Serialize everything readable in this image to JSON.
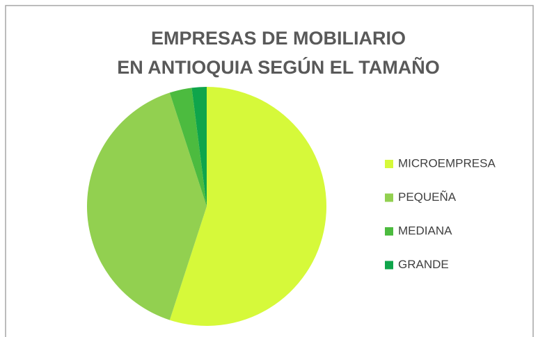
{
  "chart_data": {
    "type": "pie",
    "title": "EMPRESAS DE MOBILIARIO EN ANTIOQUIA SEGÚN EL TAMAÑO",
    "categories": [
      "MICROEMPRESA",
      "PEQUEÑA",
      "MEDIANA",
      "GRANDE"
    ],
    "values": [
      55,
      40,
      3,
      2
    ],
    "colors": [
      "#d6f93a",
      "#92d050",
      "#4cbb3f",
      "#0fa54b"
    ],
    "legend": "right"
  }
}
